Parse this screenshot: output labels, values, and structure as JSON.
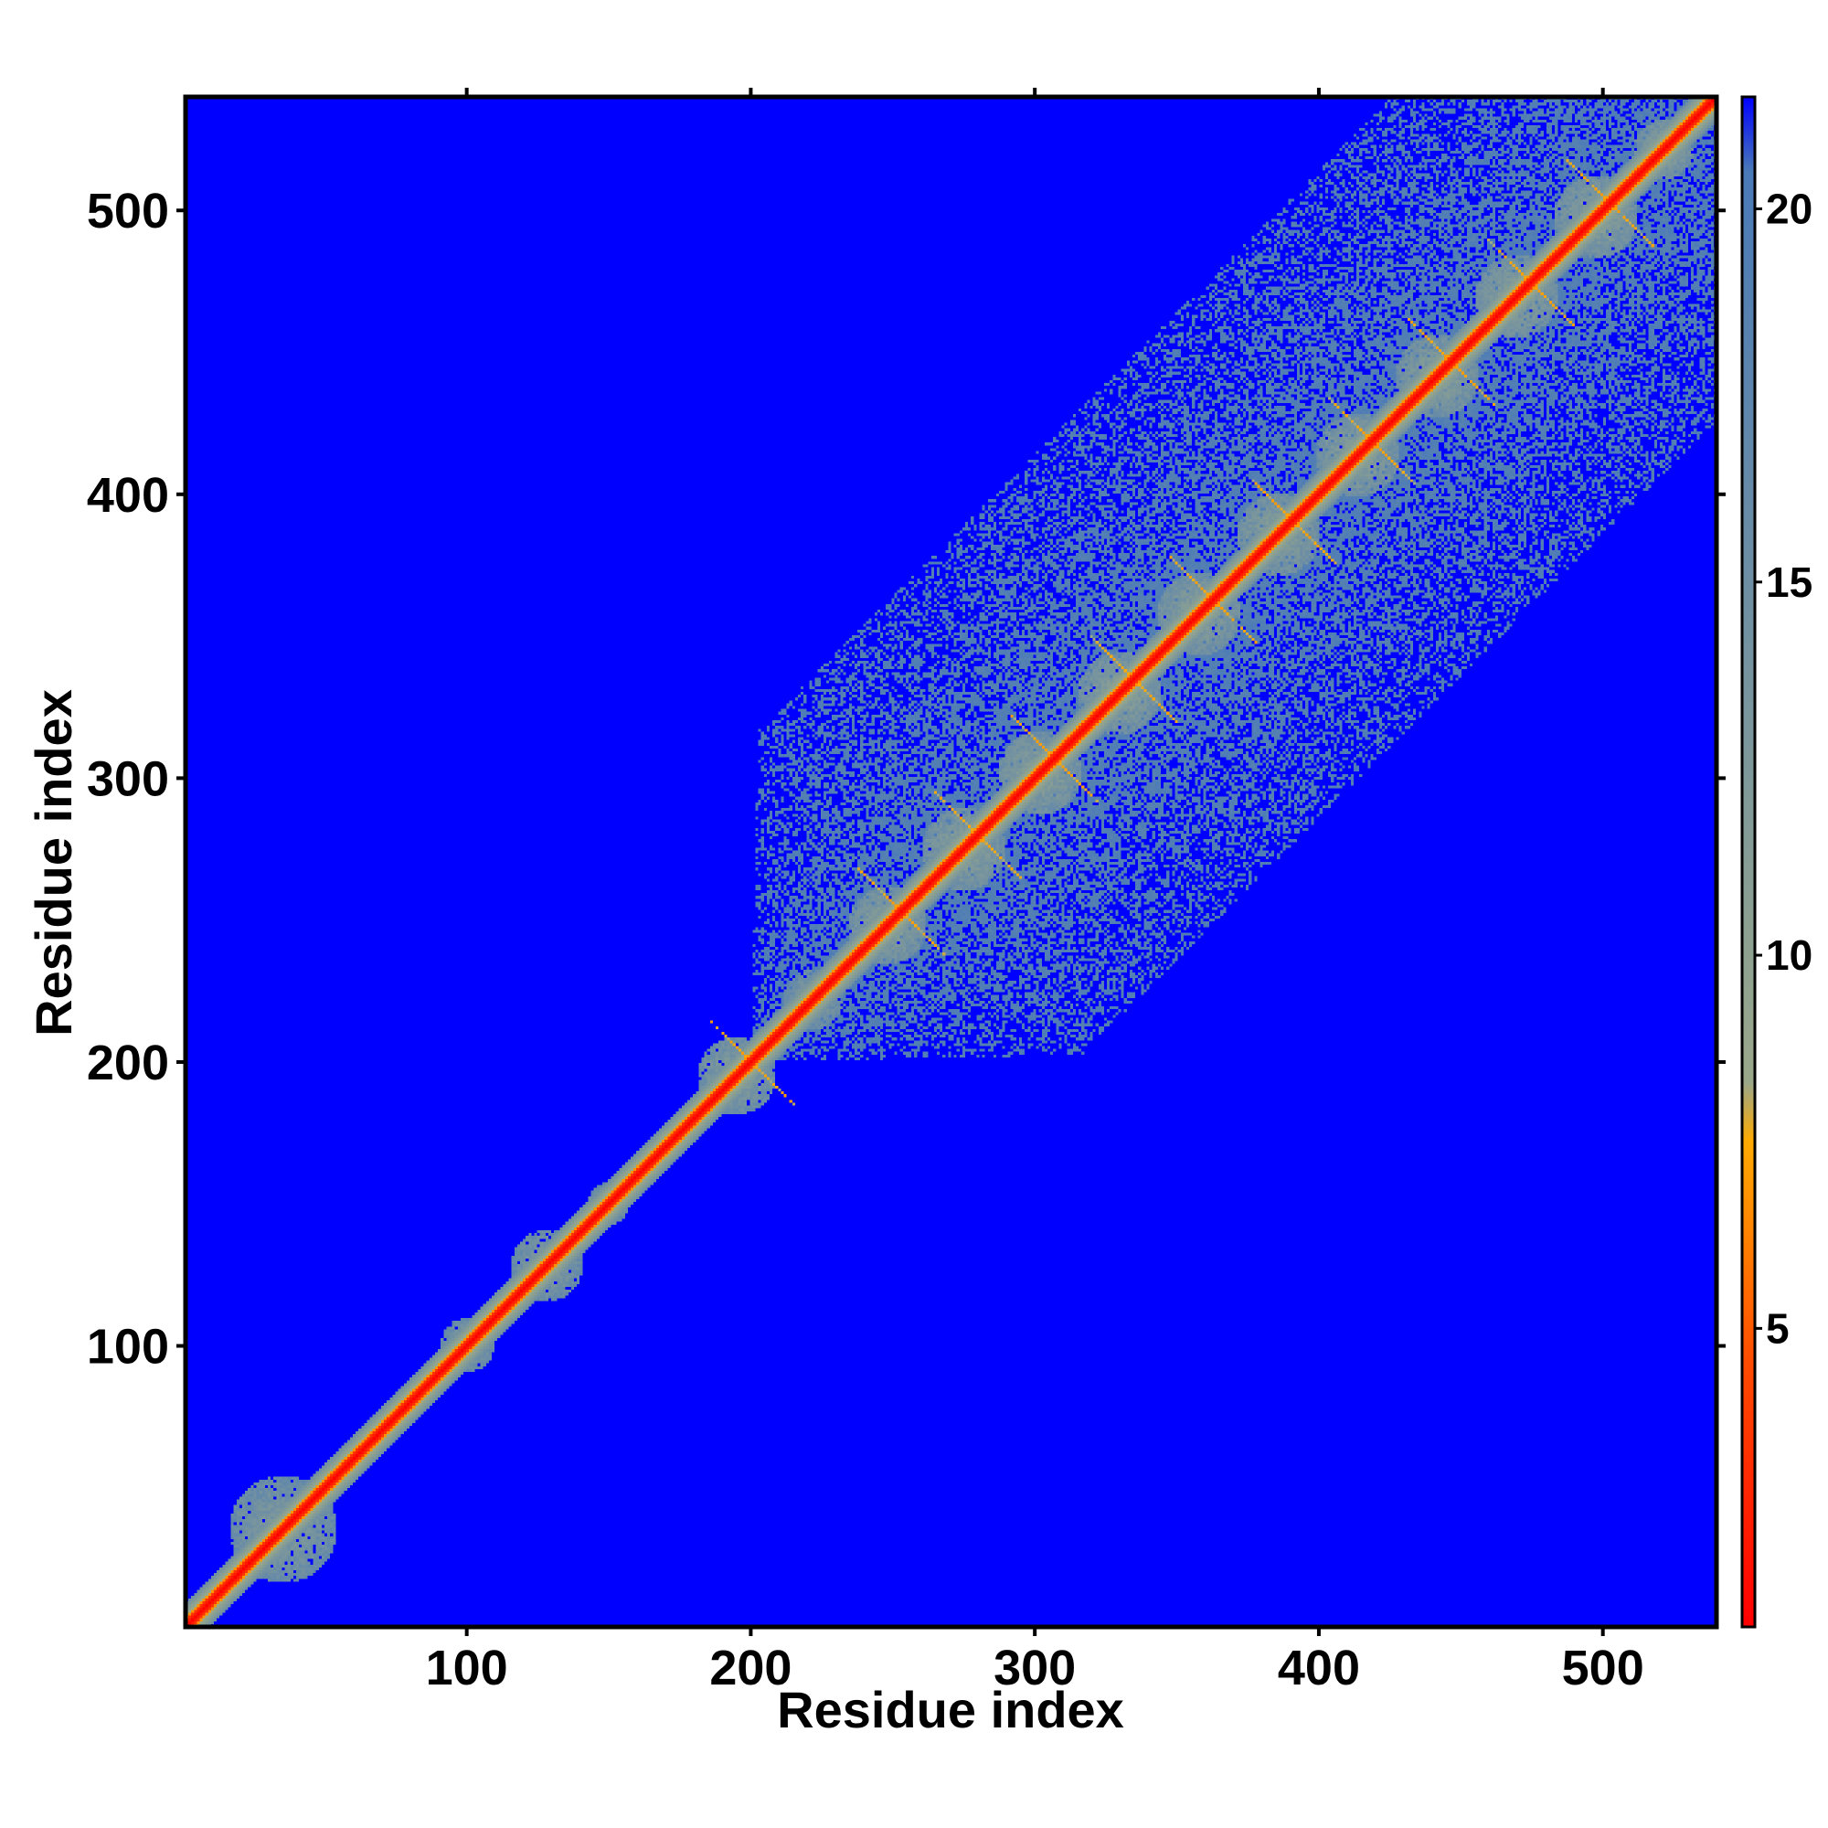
{
  "chart_data": {
    "type": "heatmap",
    "title": "",
    "xlabel": "Residue index",
    "ylabel": "Residue index",
    "xlim": [
      1,
      540
    ],
    "ylim": [
      1,
      540
    ],
    "x_ticks": [
      100,
      200,
      300,
      400,
      500
    ],
    "y_ticks": [
      100,
      200,
      300,
      400,
      500
    ],
    "colorbar": {
      "range": [
        1,
        21.5
      ],
      "ticks": [
        5,
        10,
        15,
        20
      ],
      "stops": [
        {
          "value": 1,
          "color": "#ff0000"
        },
        {
          "value": 4.5,
          "color": "#ff4a00"
        },
        {
          "value": 7.5,
          "color": "#ffaa00"
        },
        {
          "value": 8.3,
          "color": "#9aa88a"
        },
        {
          "value": 20.5,
          "color": "#4a7ab8"
        },
        {
          "value": 21.5,
          "color": "#0000ff"
        }
      ],
      "background_color": "#0000ff"
    },
    "diagonal_band": {
      "value": 3.8,
      "half_width_residues": 2.5
    },
    "contact_blocks": [
      {
        "center": 35,
        "half_width": 18,
        "value": 16
      },
      {
        "center": 100,
        "half_width": 9,
        "value": 16
      },
      {
        "center": 128,
        "half_width": 12,
        "value": 16
      },
      {
        "center": 150,
        "half_width": 7,
        "value": 16
      },
      {
        "center": 195,
        "half_width": 13,
        "value": 15.5
      },
      {
        "center": 222,
        "half_width": 10,
        "value": 16
      },
      {
        "center": 248,
        "half_width": 13,
        "value": 15
      },
      {
        "center": 275,
        "half_width": 14,
        "value": 15
      },
      {
        "center": 302,
        "half_width": 14,
        "value": 15
      },
      {
        "center": 330,
        "half_width": 14,
        "value": 15
      },
      {
        "center": 358,
        "half_width": 14,
        "value": 15
      },
      {
        "center": 386,
        "half_width": 14,
        "value": 15
      },
      {
        "center": 414,
        "half_width": 14,
        "value": 15
      },
      {
        "center": 442,
        "half_width": 14,
        "value": 15
      },
      {
        "center": 470,
        "half_width": 14,
        "value": 15
      },
      {
        "center": 498,
        "half_width": 14,
        "value": 15
      },
      {
        "center": 522,
        "half_width": 10,
        "value": 15
      }
    ],
    "diffuse_region": {
      "start": 200,
      "end": 540,
      "max_offset": 115,
      "value": 18.5
    },
    "orange_cross_contacts": {
      "centers": [
        195,
        248,
        275,
        302,
        330,
        358,
        386,
        414,
        442,
        470,
        498
      ],
      "offset": 10,
      "value": 7
    }
  }
}
